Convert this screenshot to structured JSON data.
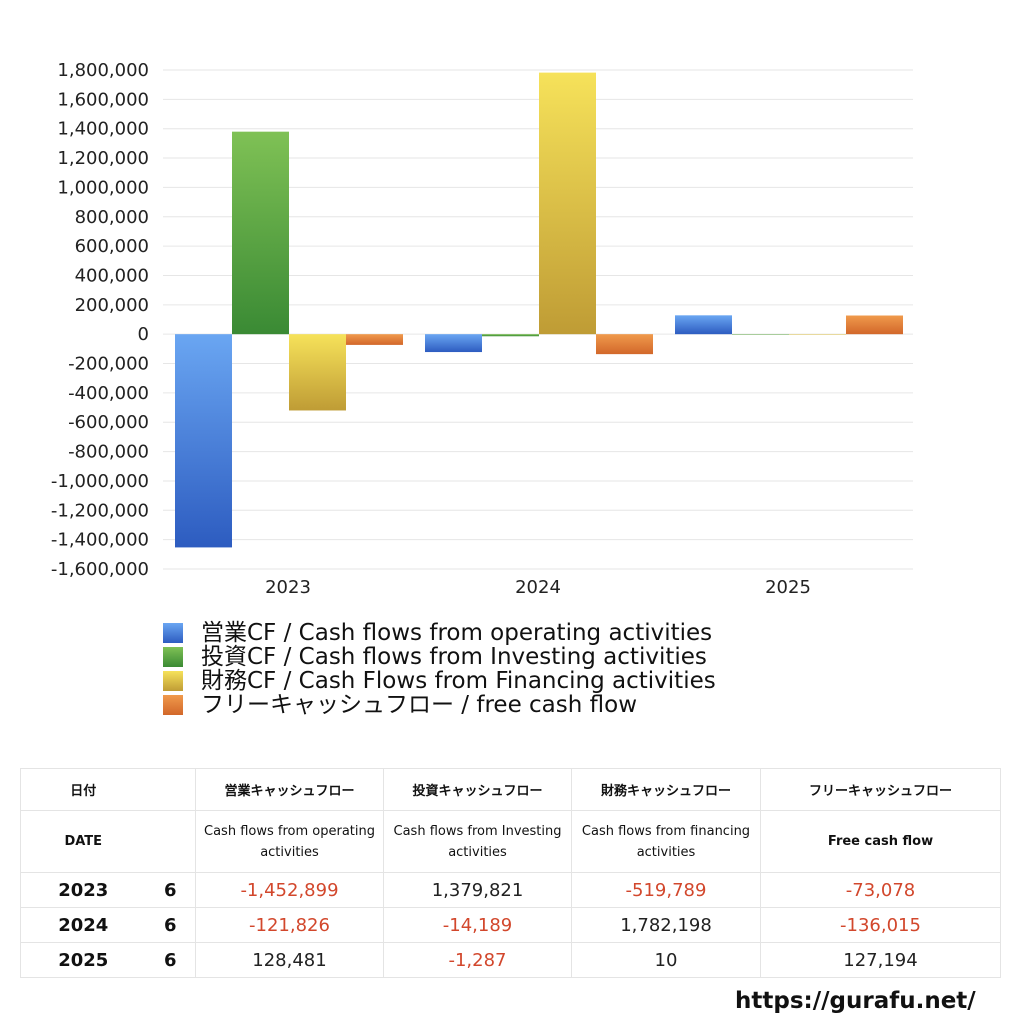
{
  "chart_data": {
    "type": "bar",
    "categories": [
      "2023",
      "2024",
      "2025"
    ],
    "series": [
      {
        "name": "営業CF / Cash flows from operating activities",
        "values": [
          -1452899,
          -121826,
          128481
        ],
        "color": "#3b78d8"
      },
      {
        "name": "投資CF / Cash flows from Investing activities",
        "values": [
          1379821,
          -14189,
          -1287
        ],
        "color": "#4a9a3c"
      },
      {
        "name": "財務CF / Cash Flows from Financing activities",
        "values": [
          -519789,
          1782198,
          10
        ],
        "color": "#e3c443"
      },
      {
        "name": "フリーキャッシュフロー / free cash flow",
        "values": [
          -73078,
          -136015,
          127194
        ],
        "color": "#e07a2e"
      }
    ],
    "ylim": [
      -1600000,
      1800000
    ],
    "yticks": [
      "1,800,000",
      "1,600,000",
      "1,400,000",
      "1,200,000",
      "1,000,000",
      "800,000",
      "600,000",
      "400,000",
      "200,000",
      "0",
      "-200,000",
      "-400,000",
      "-600,000",
      "-800,000",
      "-1,000,000",
      "-1,200,000",
      "-1,400,000",
      "-1,600,000"
    ],
    "grid": true,
    "legend_position": "bottom"
  },
  "table": {
    "header_ja": {
      "date": "日付",
      "operating": "営業キャッシュフロー",
      "investing": "投資キャッシュフロー",
      "financing": "財務キャッシュフロー",
      "free": "フリーキャッシュフロー"
    },
    "header_en": {
      "date": "DATE",
      "operating": "Cash flows from operating activities",
      "investing": "Cash flows from Investing activities",
      "financing": "Cash flows from financing activities",
      "free": "Free cash flow"
    },
    "rows": [
      {
        "year": "2023",
        "month": "6",
        "operating": "-1,452,899",
        "investing": "1,379,821",
        "financing": "-519,789",
        "free": "-73,078"
      },
      {
        "year": "2024",
        "month": "6",
        "operating": "-121,826",
        "investing": "-14,189",
        "financing": "1,782,198",
        "free": "-136,015"
      },
      {
        "year": "2025",
        "month": "6",
        "operating": "128,481",
        "investing": "-1,287",
        "financing": "10",
        "free": "127,194"
      }
    ]
  },
  "footer": {
    "url": "https://gurafu.net/"
  }
}
